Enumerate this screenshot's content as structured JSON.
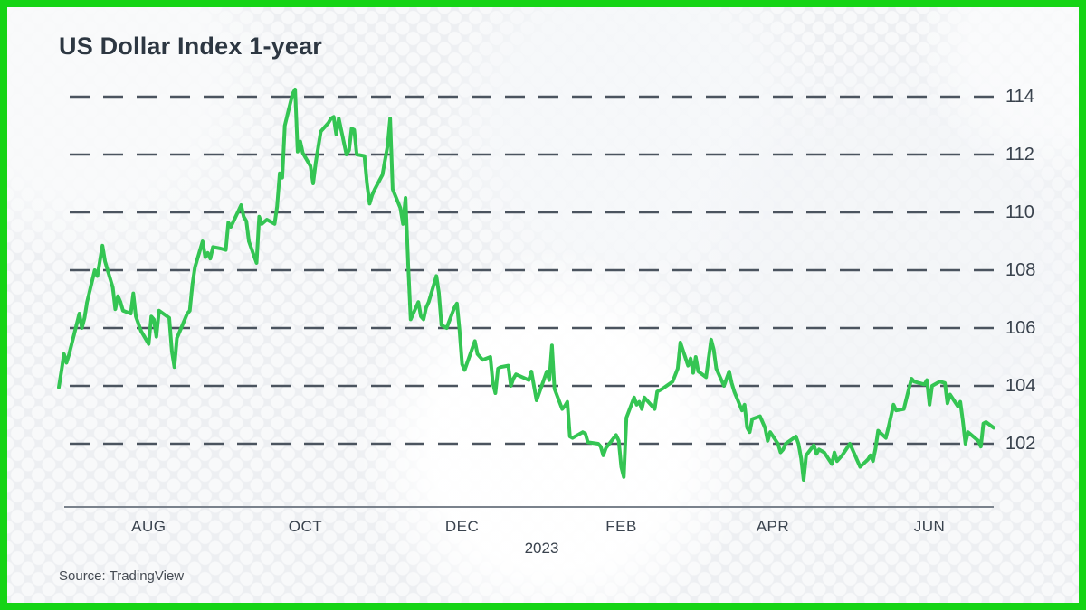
{
  "card": {
    "title": "US Dollar Index 1-year",
    "source": "Source: TradingView"
  },
  "colors": {
    "border_green": "#15d415",
    "line_green": "#34c553",
    "grid_dash": "#4b545f",
    "axis_line": "#7a828c",
    "text_title": "#2d3742",
    "text_axis": "#39424d",
    "background": "#edeff2"
  },
  "chart_data": {
    "type": "line",
    "title": "US Dollar Index 1-year",
    "series_name": "US Dollar Index (DXY)",
    "legend": "none",
    "grid": "dashed-horizontal",
    "y_axis": {
      "ticks": [
        114,
        112,
        110,
        108,
        106,
        104,
        102
      ],
      "range": [
        100.3,
        114.7
      ]
    },
    "x_axis": {
      "ticks": [
        {
          "label": "AUG",
          "date": "2022-08-01"
        },
        {
          "label": "OCT",
          "date": "2022-10-01"
        },
        {
          "label": "DEC",
          "date": "2022-12-01"
        },
        {
          "label": "FEB",
          "date": "2023-02-01"
        },
        {
          "label": "APR",
          "date": "2023-04-01"
        },
        {
          "label": "JUN",
          "date": "2023-06-01"
        }
      ],
      "year": {
        "label": "2023",
        "date": "2023-01-01"
      }
    },
    "points": [
      [
        "2022-06-27",
        103.95
      ],
      [
        "2022-06-28",
        104.5
      ],
      [
        "2022-06-29",
        105.1
      ],
      [
        "2022-06-30",
        104.8
      ],
      [
        "2022-07-01",
        105.1
      ],
      [
        "2022-07-05",
        106.5
      ],
      [
        "2022-07-06",
        106.0
      ],
      [
        "2022-07-07",
        106.35
      ],
      [
        "2022-07-08",
        106.9
      ],
      [
        "2022-07-11",
        108.0
      ],
      [
        "2022-07-12",
        107.8
      ],
      [
        "2022-07-14",
        108.85
      ],
      [
        "2022-07-15",
        108.3
      ],
      [
        "2022-07-18",
        107.4
      ],
      [
        "2022-07-19",
        106.65
      ],
      [
        "2022-07-20",
        107.1
      ],
      [
        "2022-07-21",
        106.9
      ],
      [
        "2022-07-22",
        106.6
      ],
      [
        "2022-07-25",
        106.5
      ],
      [
        "2022-07-26",
        107.2
      ],
      [
        "2022-07-27",
        106.4
      ],
      [
        "2022-07-29",
        105.9
      ],
      [
        "2022-08-01",
        105.45
      ],
      [
        "2022-08-02",
        106.4
      ],
      [
        "2022-08-03",
        106.3
      ],
      [
        "2022-08-04",
        105.7
      ],
      [
        "2022-08-05",
        106.6
      ],
      [
        "2022-08-09",
        106.35
      ],
      [
        "2022-08-10",
        105.2
      ],
      [
        "2022-08-11",
        104.65
      ],
      [
        "2022-08-12",
        105.65
      ],
      [
        "2022-08-16",
        106.5
      ],
      [
        "2022-08-17",
        106.6
      ],
      [
        "2022-08-18",
        107.5
      ],
      [
        "2022-08-19",
        108.1
      ],
      [
        "2022-08-22",
        109.0
      ],
      [
        "2022-08-23",
        108.45
      ],
      [
        "2022-08-24",
        108.6
      ],
      [
        "2022-08-25",
        108.4
      ],
      [
        "2022-08-26",
        108.8
      ],
      [
        "2022-08-29",
        108.75
      ],
      [
        "2022-08-31",
        108.7
      ],
      [
        "2022-09-01",
        109.65
      ],
      [
        "2022-09-02",
        109.5
      ],
      [
        "2022-09-06",
        110.25
      ],
      [
        "2022-09-07",
        109.85
      ],
      [
        "2022-09-08",
        109.7
      ],
      [
        "2022-09-09",
        109.0
      ],
      [
        "2022-09-12",
        108.25
      ],
      [
        "2022-09-13",
        109.85
      ],
      [
        "2022-09-14",
        109.6
      ],
      [
        "2022-09-16",
        109.75
      ],
      [
        "2022-09-19",
        109.6
      ],
      [
        "2022-09-20",
        110.2
      ],
      [
        "2022-09-21",
        111.35
      ],
      [
        "2022-09-22",
        111.2
      ],
      [
        "2022-09-23",
        113.0
      ],
      [
        "2022-09-26",
        114.1
      ],
      [
        "2022-09-27",
        114.25
      ],
      [
        "2022-09-28",
        112.1
      ],
      [
        "2022-09-29",
        112.45
      ],
      [
        "2022-09-30",
        112.05
      ],
      [
        "2022-10-03",
        111.6
      ],
      [
        "2022-10-04",
        111.0
      ],
      [
        "2022-10-05",
        111.7
      ],
      [
        "2022-10-06",
        112.25
      ],
      [
        "2022-10-07",
        112.8
      ],
      [
        "2022-10-10",
        113.1
      ],
      [
        "2022-10-11",
        113.25
      ],
      [
        "2022-10-12",
        113.3
      ],
      [
        "2022-10-13",
        112.7
      ],
      [
        "2022-10-14",
        113.25
      ],
      [
        "2022-10-17",
        112.0
      ],
      [
        "2022-10-18",
        112.15
      ],
      [
        "2022-10-19",
        112.9
      ],
      [
        "2022-10-20",
        112.85
      ],
      [
        "2022-10-21",
        112.0
      ],
      [
        "2022-10-24",
        111.95
      ],
      [
        "2022-10-25",
        111.0
      ],
      [
        "2022-10-26",
        110.3
      ],
      [
        "2022-10-27",
        110.6
      ],
      [
        "2022-10-28",
        110.8
      ],
      [
        "2022-10-31",
        111.3
      ],
      [
        "2022-11-01",
        111.8
      ],
      [
        "2022-11-02",
        112.3
      ],
      [
        "2022-11-03",
        113.25
      ],
      [
        "2022-11-04",
        110.8
      ],
      [
        "2022-11-07",
        110.15
      ],
      [
        "2022-11-08",
        109.6
      ],
      [
        "2022-11-09",
        110.5
      ],
      [
        "2022-11-10",
        108.2
      ],
      [
        "2022-11-11",
        106.3
      ],
      [
        "2022-11-14",
        106.9
      ],
      [
        "2022-11-15",
        106.4
      ],
      [
        "2022-11-16",
        106.3
      ],
      [
        "2022-11-17",
        106.7
      ],
      [
        "2022-11-18",
        106.9
      ],
      [
        "2022-11-21",
        107.8
      ],
      [
        "2022-11-22",
        107.2
      ],
      [
        "2022-11-23",
        106.1
      ],
      [
        "2022-11-25",
        106.0
      ],
      [
        "2022-11-28",
        106.7
      ],
      [
        "2022-11-29",
        106.85
      ],
      [
        "2022-11-30",
        105.95
      ],
      [
        "2022-12-01",
        104.75
      ],
      [
        "2022-12-02",
        104.55
      ],
      [
        "2022-12-05",
        105.3
      ],
      [
        "2022-12-06",
        105.55
      ],
      [
        "2022-12-07",
        105.1
      ],
      [
        "2022-12-09",
        104.9
      ],
      [
        "2022-12-12",
        105.0
      ],
      [
        "2022-12-13",
        104.1
      ],
      [
        "2022-12-14",
        103.75
      ],
      [
        "2022-12-15",
        104.6
      ],
      [
        "2022-12-16",
        104.65
      ],
      [
        "2022-12-19",
        104.7
      ],
      [
        "2022-12-20",
        104.0
      ],
      [
        "2022-12-21",
        104.25
      ],
      [
        "2022-12-22",
        104.4
      ],
      [
        "2022-12-27",
        104.2
      ],
      [
        "2022-12-28",
        104.5
      ],
      [
        "2022-12-29",
        104.0
      ],
      [
        "2022-12-30",
        103.5
      ],
      [
        "2023-01-03",
        104.5
      ],
      [
        "2023-01-04",
        104.2
      ],
      [
        "2023-01-05",
        105.4
      ],
      [
        "2023-01-06",
        103.9
      ],
      [
        "2023-01-09",
        103.2
      ],
      [
        "2023-01-10",
        103.3
      ],
      [
        "2023-01-11",
        103.45
      ],
      [
        "2023-01-12",
        102.25
      ],
      [
        "2023-01-13",
        102.2
      ],
      [
        "2023-01-17",
        102.4
      ],
      [
        "2023-01-18",
        102.35
      ],
      [
        "2023-01-19",
        102.05
      ],
      [
        "2023-01-23",
        102.0
      ],
      [
        "2023-01-24",
        101.9
      ],
      [
        "2023-01-25",
        101.6
      ],
      [
        "2023-01-26",
        101.85
      ],
      [
        "2023-01-30",
        102.3
      ],
      [
        "2023-01-31",
        102.1
      ],
      [
        "2023-02-01",
        101.2
      ],
      [
        "2023-02-02",
        100.85
      ],
      [
        "2023-02-03",
        102.9
      ],
      [
        "2023-02-06",
        103.6
      ],
      [
        "2023-02-07",
        103.35
      ],
      [
        "2023-02-08",
        103.45
      ],
      [
        "2023-02-09",
        103.2
      ],
      [
        "2023-02-10",
        103.6
      ],
      [
        "2023-02-13",
        103.3
      ],
      [
        "2023-02-14",
        103.2
      ],
      [
        "2023-02-15",
        103.8
      ],
      [
        "2023-02-17",
        103.9
      ],
      [
        "2023-02-21",
        104.15
      ],
      [
        "2023-02-23",
        104.6
      ],
      [
        "2023-02-24",
        105.5
      ],
      [
        "2023-02-27",
        104.7
      ],
      [
        "2023-02-28",
        104.95
      ],
      [
        "2023-03-01",
        104.45
      ],
      [
        "2023-03-02",
        105.0
      ],
      [
        "2023-03-03",
        104.5
      ],
      [
        "2023-03-06",
        104.3
      ],
      [
        "2023-03-08",
        105.6
      ],
      [
        "2023-03-09",
        105.25
      ],
      [
        "2023-03-10",
        104.6
      ],
      [
        "2023-03-13",
        104.0
      ],
      [
        "2023-03-15",
        104.5
      ],
      [
        "2023-03-16",
        104.1
      ],
      [
        "2023-03-17",
        103.8
      ],
      [
        "2023-03-20",
        103.15
      ],
      [
        "2023-03-21",
        103.35
      ],
      [
        "2023-03-22",
        102.55
      ],
      [
        "2023-03-23",
        102.4
      ],
      [
        "2023-03-24",
        102.85
      ],
      [
        "2023-03-27",
        102.95
      ],
      [
        "2023-03-29",
        102.55
      ],
      [
        "2023-03-30",
        102.1
      ],
      [
        "2023-03-31",
        102.4
      ],
      [
        "2023-04-03",
        102.0
      ],
      [
        "2023-04-04",
        101.7
      ],
      [
        "2023-04-05",
        101.8
      ],
      [
        "2023-04-06",
        102.0
      ],
      [
        "2023-04-10",
        102.25
      ],
      [
        "2023-04-11",
        102.0
      ],
      [
        "2023-04-12",
        101.5
      ],
      [
        "2023-04-13",
        100.75
      ],
      [
        "2023-04-14",
        101.6
      ],
      [
        "2023-04-17",
        101.95
      ],
      [
        "2023-04-18",
        101.65
      ],
      [
        "2023-04-19",
        101.8
      ],
      [
        "2023-04-21",
        101.7
      ],
      [
        "2023-04-24",
        101.3
      ],
      [
        "2023-04-25",
        101.7
      ],
      [
        "2023-04-26",
        101.4
      ],
      [
        "2023-04-28",
        101.6
      ],
      [
        "2023-05-01",
        102.0
      ],
      [
        "2023-05-03",
        101.6
      ],
      [
        "2023-05-04",
        101.4
      ],
      [
        "2023-05-05",
        101.2
      ],
      [
        "2023-05-08",
        101.45
      ],
      [
        "2023-05-09",
        101.6
      ],
      [
        "2023-05-10",
        101.4
      ],
      [
        "2023-05-11",
        101.85
      ],
      [
        "2023-05-12",
        102.45
      ],
      [
        "2023-05-15",
        102.2
      ],
      [
        "2023-05-16",
        102.55
      ],
      [
        "2023-05-17",
        102.95
      ],
      [
        "2023-05-18",
        103.35
      ],
      [
        "2023-05-19",
        103.15
      ],
      [
        "2023-05-22",
        103.2
      ],
      [
        "2023-05-23",
        103.55
      ],
      [
        "2023-05-24",
        103.9
      ],
      [
        "2023-05-25",
        104.25
      ],
      [
        "2023-05-26",
        104.15
      ],
      [
        "2023-05-30",
        104.05
      ],
      [
        "2023-05-31",
        104.2
      ],
      [
        "2023-06-01",
        103.35
      ],
      [
        "2023-06-02",
        104.0
      ],
      [
        "2023-06-05",
        104.15
      ],
      [
        "2023-06-07",
        104.1
      ],
      [
        "2023-06-08",
        103.4
      ],
      [
        "2023-06-09",
        103.7
      ],
      [
        "2023-06-12",
        103.3
      ],
      [
        "2023-06-13",
        103.45
      ],
      [
        "2023-06-14",
        102.8
      ],
      [
        "2023-06-15",
        102.0
      ],
      [
        "2023-06-16",
        102.4
      ],
      [
        "2023-06-20",
        102.1
      ],
      [
        "2023-06-21",
        101.9
      ],
      [
        "2023-06-22",
        102.7
      ],
      [
        "2023-06-23",
        102.75
      ],
      [
        "2023-06-26",
        102.55
      ]
    ]
  }
}
